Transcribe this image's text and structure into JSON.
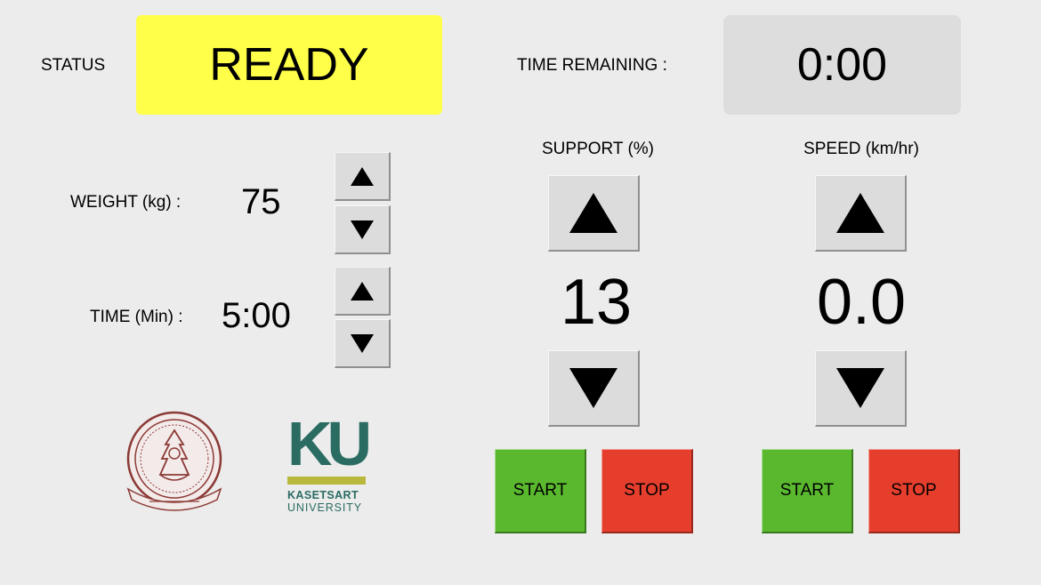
{
  "colors": {
    "status_bg": "#ffff4a",
    "start_bg": "#5ab82e",
    "stop_bg": "#e63e2d",
    "ku_green": "#2a6b62",
    "ku_bar": "#b7b83d",
    "seal_red": "#8b3a35"
  },
  "status": {
    "label": "STATUS",
    "value": "READY"
  },
  "time_remaining": {
    "label": "TIME REMAINING :",
    "value": "0:00"
  },
  "weight": {
    "label": "WEIGHT (kg) :",
    "value": "75"
  },
  "time": {
    "label": "TIME (Min) :",
    "value": "5:00"
  },
  "support": {
    "label": "SUPPORT (%)",
    "value": "13",
    "start_label": "START",
    "stop_label": "STOP"
  },
  "speed": {
    "label": "SPEED (km/hr)",
    "value": "0.0",
    "start_label": "START",
    "stop_label": "STOP"
  },
  "logos": {
    "faculty_seal": {
      "icon": "faculty-seal-icon"
    },
    "ku": {
      "letters": "KU",
      "name": "KASETSART",
      "subtitle": "UNIVERSITY"
    }
  }
}
